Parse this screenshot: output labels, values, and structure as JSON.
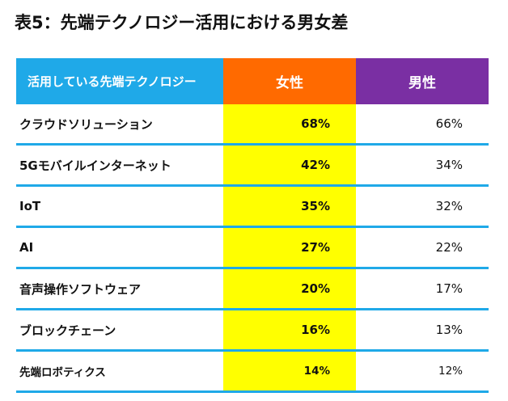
{
  "title": "表5：先端テクノロジー活用における男女差",
  "table": {
    "headers": {
      "technology": "活用している先端テクノロジー",
      "female": "女性",
      "male": "男性"
    },
    "rows": [
      {
        "technology": "クラウドソリューション",
        "female": "68%",
        "male": "66%"
      },
      {
        "technology": "5Gモバイルインターネット",
        "female": "42%",
        "male": "34%"
      },
      {
        "technology": "IoT",
        "female": "35%",
        "male": "32%"
      },
      {
        "technology": "AI",
        "female": "27%",
        "male": "22%"
      },
      {
        "technology": "音声操作ソフトウェア",
        "female": "20%",
        "male": "17%"
      },
      {
        "technology": "ブロックチェーン",
        "female": "16%",
        "male": "13%"
      },
      {
        "technology": "先端ロボティクス",
        "female": "14%",
        "male": "12%"
      }
    ]
  },
  "colors": {
    "header_tech": "#1fa9e8",
    "header_female": "#ff6a00",
    "header_male": "#7a2fa3",
    "female_column": "#ffff00",
    "row_divider": "#1fa9e8"
  }
}
